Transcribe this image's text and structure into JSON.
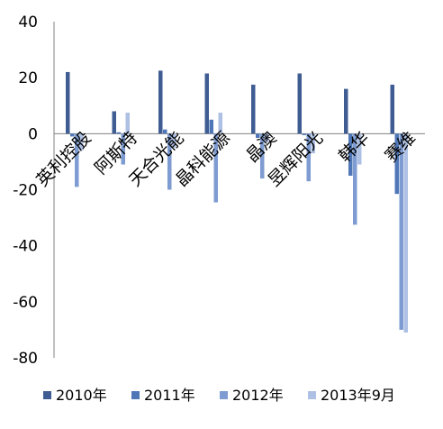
{
  "chart_data": {
    "type": "bar",
    "categories": [
      "英利控股",
      "阿斯特",
      "天合光能",
      "晶科能源",
      "晶澳",
      "昱辉阳光",
      "韩华",
      "赛维"
    ],
    "series": [
      {
        "name": "2010年",
        "color": "#3F5D93",
        "values": [
          22,
          8,
          22.5,
          21.5,
          17.5,
          21.5,
          16,
          17.5
        ]
      },
      {
        "name": "2011年",
        "color": "#4F77B8",
        "values": [
          -1,
          0.5,
          1.5,
          5,
          -1.5,
          -0.5,
          -15,
          -21.5
        ]
      },
      {
        "name": "2012年",
        "color": "#7E9CD1",
        "values": [
          -19,
          -11,
          -20,
          -24.5,
          -16,
          -17,
          -32.5,
          -70
        ]
      },
      {
        "name": "2013年9月",
        "color": "#AEC0E3",
        "values": [
          -6,
          7.5,
          -5,
          7.5,
          -3,
          -7,
          -11,
          -71
        ]
      }
    ],
    "y_ticks": [
      "40",
      "20",
      "0",
      "-20",
      "-40",
      "-60",
      "-80"
    ],
    "ylim": [
      -80,
      40
    ],
    "grid": false,
    "legend_position": "bottom"
  }
}
